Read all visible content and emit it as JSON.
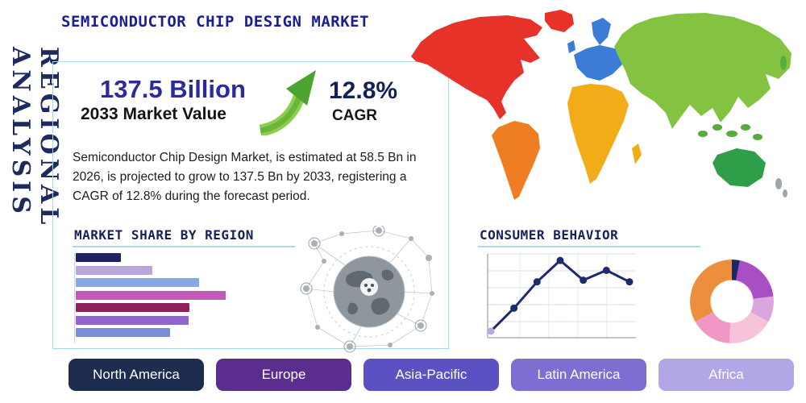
{
  "header": {
    "title": "SEMICONDUCTOR CHIP DESIGN MARKET",
    "side_label": "REGIONAL ANALYSIS"
  },
  "stats": {
    "market_value": "137.5 Billion",
    "market_value_label": "2033 Market Value",
    "cagr_value": "12.8%",
    "cagr_label": "CAGR",
    "arrow_gradient": [
      "#8ccf4a",
      "#4da32f"
    ],
    "description": "Semiconductor Chip Design Market, is estimated at 58.5 Bn in 2026, is projected to grow to 137.5 Bn by 2033, registering a CAGR of 12.8% during the forecast period."
  },
  "sections": {
    "market_share_title": "MARKET SHARE BY REGION",
    "consumer_behavior_title": "CONSUMER BEHAVIOR"
  },
  "regions": [
    {
      "label": "North America",
      "color": "#1d2c4f"
    },
    {
      "label": "Europe",
      "color": "#5b2d8e"
    },
    {
      "label": "Asia-Pacific",
      "color": "#5a52c3"
    },
    {
      "label": "Latin America",
      "color": "#7e6ed2"
    },
    {
      "label": "Africa",
      "color": "#b3a6e6"
    }
  ],
  "map": {
    "colors": {
      "north_america": "#e63228",
      "greenland": "#e63228",
      "south_america": "#ef7d22",
      "europe": "#3b7cd6",
      "uk": "#3b7cd6",
      "scandinavia": "#3b7cd6",
      "africa": "#f2ac18",
      "madagascar": "#f2ac18",
      "asia": "#84c341",
      "islands": "#5aab3f",
      "australia": "#2f9e49",
      "new_zealand": "#9aa5ad"
    }
  },
  "chart_data": [
    {
      "type": "bar",
      "orientation": "horizontal",
      "title": "Market Share by Region",
      "note": "unlabeled horizontal bars, lengths estimated as % of longest bar",
      "values": [
        30,
        51,
        82,
        100,
        76,
        75,
        63
      ],
      "colors": [
        "#1e2360",
        "#b9a6dc",
        "#85a9e0",
        "#c45ab8",
        "#8e2158",
        "#9166cc",
        "#7b8fd9"
      ]
    },
    {
      "type": "line",
      "title": "Consumer Behavior",
      "note": "unlabeled axes, 7 points estimated on relative 0-100 scale",
      "x": [
        1,
        2,
        3,
        4,
        5,
        6,
        7
      ],
      "values": [
        6,
        34,
        66,
        92,
        68,
        80,
        66
      ],
      "color": "#1e2a6e",
      "start_point_color": "#b9a8e0",
      "grid": true
    },
    {
      "type": "pie",
      "subtype": "donut",
      "title": "Regional share donut",
      "note": "unlabeled slices, % estimated clockwise from top",
      "slices": [
        {
          "value": 3,
          "color": "#1c2960"
        },
        {
          "value": 20,
          "color": "#a94fc4"
        },
        {
          "value": 10,
          "color": "#dba6e0"
        },
        {
          "value": 18,
          "color": "#f7c3da"
        },
        {
          "value": 16,
          "color": "#ef97c5"
        },
        {
          "value": 33,
          "color": "#ec8f3d"
        }
      ]
    }
  ]
}
